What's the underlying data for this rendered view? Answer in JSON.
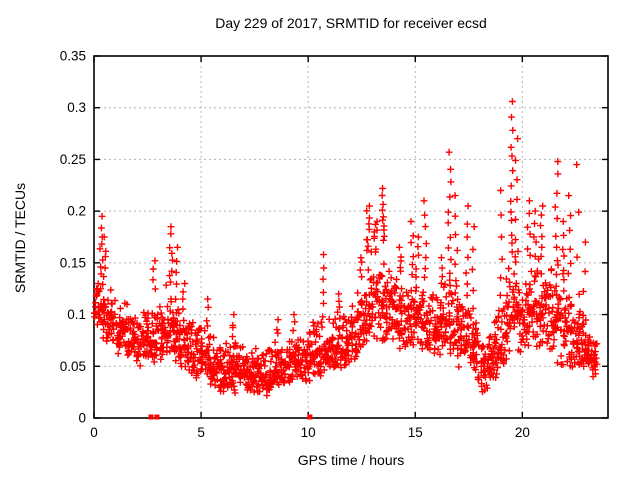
{
  "window": {
    "background": "#ffffff"
  },
  "chart_data": {
    "type": "scatter",
    "title": "Day 229 of 2017, SRMTID for receiver ecsd",
    "xlabel": "GPS time / hours",
    "ylabel": "SRMTID / TECUs",
    "xlim": [
      0,
      24
    ],
    "ylim": [
      0,
      0.35
    ],
    "grid": true,
    "legend": "none",
    "marker": {
      "shape": "plus",
      "color": "#ff0000",
      "size": 7
    },
    "square_marker": {
      "shape": "filled-square",
      "color": "#ff0000",
      "size": 5
    },
    "grid_color": "#b3b3b3",
    "axis_color": "#000000",
    "text_color": "#000000",
    "xticks": [
      {
        "v": 0,
        "label": "0"
      },
      {
        "v": 5,
        "label": "5"
      },
      {
        "v": 10,
        "label": "10"
      },
      {
        "v": 15,
        "label": "15"
      },
      {
        "v": 20,
        "label": "20"
      }
    ],
    "yticks": [
      {
        "v": 0,
        "label": "0"
      },
      {
        "v": 0.05,
        "label": "0.05"
      },
      {
        "v": 0.1,
        "label": "0.1"
      },
      {
        "v": 0.15,
        "label": "0.15"
      },
      {
        "v": 0.2,
        "label": "0.2"
      },
      {
        "v": 0.25,
        "label": "0.25"
      },
      {
        "v": 0.3,
        "label": "0.3"
      }
    ],
    "ytick_top": {
      "v": 0.35,
      "label": "0.35"
    },
    "envelope": [
      [
        0.0,
        0.085,
        0.155
      ],
      [
        0.5,
        0.07,
        0.135
      ],
      [
        1.0,
        0.06,
        0.125
      ],
      [
        1.5,
        0.055,
        0.115
      ],
      [
        2.0,
        0.05,
        0.11
      ],
      [
        2.5,
        0.05,
        0.12
      ],
      [
        3.0,
        0.05,
        0.125
      ],
      [
        3.5,
        0.055,
        0.135
      ],
      [
        4.0,
        0.045,
        0.11
      ],
      [
        4.5,
        0.04,
        0.1
      ],
      [
        5.0,
        0.035,
        0.095
      ],
      [
        5.5,
        0.028,
        0.085
      ],
      [
        6.0,
        0.022,
        0.075
      ],
      [
        6.5,
        0.022,
        0.08
      ],
      [
        7.0,
        0.025,
        0.075
      ],
      [
        7.5,
        0.022,
        0.07
      ],
      [
        8.0,
        0.02,
        0.07
      ],
      [
        8.5,
        0.025,
        0.08
      ],
      [
        9.0,
        0.03,
        0.08
      ],
      [
        9.5,
        0.035,
        0.085
      ],
      [
        10.0,
        0.035,
        0.09
      ],
      [
        10.5,
        0.04,
        0.1
      ],
      [
        11.0,
        0.04,
        0.1
      ],
      [
        11.5,
        0.045,
        0.105
      ],
      [
        12.0,
        0.05,
        0.115
      ],
      [
        12.5,
        0.06,
        0.14
      ],
      [
        13.0,
        0.07,
        0.175
      ],
      [
        13.5,
        0.07,
        0.17
      ],
      [
        14.0,
        0.06,
        0.145
      ],
      [
        14.5,
        0.06,
        0.135
      ],
      [
        15.0,
        0.06,
        0.14
      ],
      [
        15.5,
        0.06,
        0.135
      ],
      [
        16.0,
        0.055,
        0.125
      ],
      [
        16.5,
        0.06,
        0.145
      ],
      [
        17.0,
        0.05,
        0.13
      ],
      [
        17.5,
        0.045,
        0.115
      ],
      [
        18.0,
        0.03,
        0.09
      ],
      [
        18.3,
        0.02,
        0.075
      ],
      [
        18.6,
        0.03,
        0.09
      ],
      [
        19.0,
        0.045,
        0.12
      ],
      [
        19.5,
        0.06,
        0.17
      ],
      [
        20.0,
        0.055,
        0.15
      ],
      [
        20.5,
        0.06,
        0.16
      ],
      [
        21.0,
        0.06,
        0.155
      ],
      [
        21.5,
        0.055,
        0.145
      ],
      [
        22.0,
        0.05,
        0.145
      ],
      [
        22.5,
        0.045,
        0.125
      ],
      [
        23.0,
        0.04,
        0.095
      ],
      [
        23.3,
        0.035,
        0.08
      ]
    ],
    "spikes": [
      [
        0.35,
        0.195,
        8
      ],
      [
        0.5,
        0.175,
        5
      ],
      [
        2.8,
        0.152,
        4
      ],
      [
        3.6,
        0.185,
        8
      ],
      [
        3.85,
        0.165,
        5
      ],
      [
        4.2,
        0.13,
        4
      ],
      [
        5.3,
        0.115,
        4
      ],
      [
        6.5,
        0.1,
        4
      ],
      [
        8.6,
        0.095,
        3
      ],
      [
        9.3,
        0.1,
        3
      ],
      [
        10.7,
        0.158,
        6
      ],
      [
        11.4,
        0.12,
        4
      ],
      [
        12.45,
        0.155,
        4
      ],
      [
        12.8,
        0.205,
        9
      ],
      [
        13.15,
        0.19,
        6
      ],
      [
        13.5,
        0.222,
        10
      ],
      [
        14.3,
        0.165,
        5
      ],
      [
        14.85,
        0.19,
        6
      ],
      [
        15.1,
        0.175,
        5
      ],
      [
        15.45,
        0.21,
        7
      ],
      [
        16.2,
        0.155,
        4
      ],
      [
        16.6,
        0.257,
        10
      ],
      [
        16.9,
        0.215,
        6
      ],
      [
        17.4,
        0.205,
        7
      ],
      [
        17.7,
        0.185,
        5
      ],
      [
        19.0,
        0.22,
        6
      ],
      [
        19.5,
        0.306,
        12
      ],
      [
        19.75,
        0.27,
        7
      ],
      [
        20.3,
        0.21,
        6
      ],
      [
        20.6,
        0.2,
        5
      ],
      [
        20.9,
        0.205,
        6
      ],
      [
        21.6,
        0.248,
        9
      ],
      [
        21.9,
        0.19,
        5
      ],
      [
        22.2,
        0.215,
        6
      ],
      [
        22.6,
        0.245,
        4
      ],
      [
        22.9,
        0.17,
        4
      ]
    ],
    "zero_markers": [
      2.66,
      2.94,
      10.08
    ],
    "points_per_quarter_hour": 20,
    "x_end": 23.3
  }
}
